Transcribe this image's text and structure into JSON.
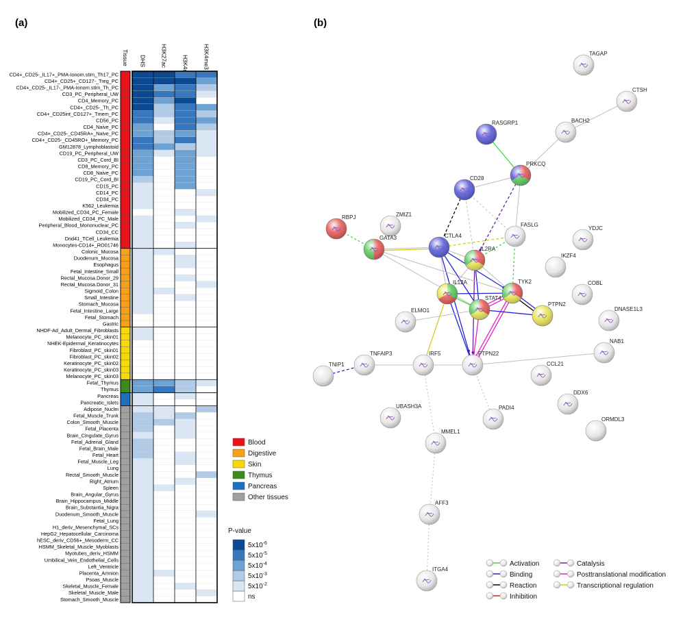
{
  "panel_a": {
    "label": "(a)",
    "tissue_header": "Tissue",
    "columns": [
      "DHS",
      "H3K27ac",
      "H3K4me1",
      "H3K4me3"
    ],
    "groups": [
      {
        "name": "Blood",
        "color": "#e8141c",
        "rows": [
          {
            "label": "CD4+_CD25-_IL17+_PMA-Ionom.stim_Th17_PC",
            "values": [
              5,
              5,
              4,
              4
            ]
          },
          {
            "label": "CD4+_CD25+_CD127-_Treg_PC",
            "values": [
              5,
              5,
              5,
              3
            ]
          },
          {
            "label": "CD4+_CD25-_IL17-_PMA-Ionom.stim_Th_PC",
            "values": [
              5,
              3,
              4,
              2
            ]
          },
          {
            "label": "CD3_PC_Peripheral_UW",
            "values": [
              5,
              4,
              4,
              1
            ]
          },
          {
            "label": "CD4_Memory_PC",
            "values": [
              5,
              3,
              5,
              0
            ]
          },
          {
            "label": "CD4+_CD25-_Th_PC",
            "values": [
              5,
              2,
              4,
              3
            ]
          },
          {
            "label": "CD4+_CD25int_CD127+_Tmem_PC",
            "values": [
              4,
              2,
              4,
              2
            ]
          },
          {
            "label": "CD56_PC",
            "values": [
              4,
              1,
              4,
              3
            ]
          },
          {
            "label": "CD4_Naive_PC",
            "values": [
              3,
              0,
              4,
              2
            ]
          },
          {
            "label": "CD4+_CD25-_CD45RA+_Naive_PC",
            "values": [
              3,
              2,
              3,
              1
            ]
          },
          {
            "label": "CD4+_CD25-_CD45RO+_Memory_PC",
            "values": [
              4,
              2,
              4,
              1
            ]
          },
          {
            "label": "GM12878_Lymphoblastoid",
            "values": [
              4,
              3,
              2,
              1
            ]
          },
          {
            "label": "CD19_PC_Peripheral_UW",
            "values": [
              3,
              1,
              3,
              1
            ]
          },
          {
            "label": "CD3_PC_Cord_BI",
            "values": [
              3,
              0,
              3,
              0
            ]
          },
          {
            "label": "CD8_Memory_PC",
            "values": [
              3,
              0,
              3,
              0
            ]
          },
          {
            "label": "CD8_Naive_PC",
            "values": [
              3,
              0,
              3,
              0
            ]
          },
          {
            "label": "CD19_PC_Cord_BI",
            "values": [
              2,
              0,
              3,
              0
            ]
          },
          {
            "label": "CD15_PC",
            "values": [
              1,
              0,
              3,
              0
            ]
          },
          {
            "label": "CD14_PC",
            "values": [
              1,
              0,
              0,
              1
            ]
          },
          {
            "label": "CD34_PC",
            "values": [
              1,
              0,
              0,
              0
            ]
          },
          {
            "label": "K562_Leukemia",
            "values": [
              1,
              0,
              0,
              0
            ]
          },
          {
            "label": "Mobilized_CD34_PC_Female",
            "values": [
              0,
              0,
              1,
              0
            ]
          },
          {
            "label": "Mobilized_CD34_PC_Male",
            "values": [
              1,
              0,
              0,
              1
            ]
          },
          {
            "label": "Peripheral_Blood_Mononuclear_PC",
            "values": [
              1,
              0,
              1,
              0
            ]
          },
          {
            "label": "CD34_CC",
            "values": [
              1,
              0,
              0,
              0
            ]
          },
          {
            "label": "Dnd41_TCell_Leukemia",
            "values": [
              1,
              0,
              0,
              0
            ]
          },
          {
            "label": "Monocytes-CD14+_RO01746",
            "values": [
              1,
              0,
              1,
              0
            ]
          }
        ]
      },
      {
        "name": "Digestive",
        "color": "#f7a11a",
        "rows": [
          {
            "label": "Colonic_Mucosa",
            "values": [
              1,
              1,
              0,
              0
            ]
          },
          {
            "label": "Duodenum_Mucosa",
            "values": [
              1,
              0,
              1,
              0
            ]
          },
          {
            "label": "Esophagus",
            "values": [
              1,
              0,
              1,
              0
            ]
          },
          {
            "label": "Fetal_Intestine_Small",
            "values": [
              1,
              0,
              0,
              0
            ]
          },
          {
            "label": "Rectal_Mucosa.Donor_29",
            "values": [
              1,
              0,
              1,
              0
            ]
          },
          {
            "label": "Rectal_Mucosa.Donor_31",
            "values": [
              1,
              0,
              0,
              1
            ]
          },
          {
            "label": "Sigmoid_Colon",
            "values": [
              1,
              1,
              0,
              0
            ]
          },
          {
            "label": "Small_Intestine",
            "values": [
              1,
              0,
              1,
              0
            ]
          },
          {
            "label": "Stomach_Mucosa",
            "values": [
              1,
              0,
              0,
              0
            ]
          },
          {
            "label": "Fetal_Intestine_Large",
            "values": [
              1,
              0,
              0,
              0
            ]
          },
          {
            "label": "Fetal_Stomach",
            "values": [
              0,
              0,
              0,
              0
            ]
          },
          {
            "label": "Gastric",
            "values": [
              0,
              0,
              0,
              0
            ]
          }
        ]
      },
      {
        "name": "Skin",
        "color": "#f5d90a",
        "rows": [
          {
            "label": "NHDF-Ad_Adult_Dermal_Fibroblasts",
            "values": [
              1,
              0,
              0,
              0
            ]
          },
          {
            "label": "Melanocyte_PC_skin01",
            "values": [
              1,
              0,
              0,
              0
            ]
          },
          {
            "label": "NHEK-Epidermal_Keratinocytes",
            "values": [
              0,
              0,
              0,
              0
            ]
          },
          {
            "label": "Fibroblast_PC_skin01",
            "values": [
              0,
              0,
              0,
              0
            ]
          },
          {
            "label": "Fibroblast_PC_skin02",
            "values": [
              0,
              0,
              0,
              0
            ]
          },
          {
            "label": "Keratinocyte_PC_skin02",
            "values": [
              0,
              0,
              0,
              0
            ]
          },
          {
            "label": "Keratinocyte_PC_skin03",
            "values": [
              0,
              0,
              0,
              0
            ]
          },
          {
            "label": "Melanocyte_PC_skin03",
            "values": [
              0,
              0,
              0,
              0
            ]
          }
        ]
      },
      {
        "name": "Thymus",
        "color": "#3d8b1f",
        "rows": [
          {
            "label": "Fetal_Thymus",
            "values": [
              3,
              3,
              2,
              1
            ]
          },
          {
            "label": "Thymus",
            "values": [
              3,
              4,
              2,
              0
            ]
          }
        ]
      },
      {
        "name": "Pancreas",
        "color": "#1f6fc0",
        "rows": [
          {
            "label": "Pancreas",
            "values": [
              1,
              0,
              1,
              0
            ]
          },
          {
            "label": "Pancreatic_Islets",
            "values": [
              1,
              0,
              0,
              0
            ]
          }
        ]
      },
      {
        "name": "Other tissues",
        "color": "#a0a0a0",
        "rows": [
          {
            "label": "Adipose_Nuclei",
            "values": [
              1,
              1,
              0,
              2
            ]
          },
          {
            "label": "Fetal_Muscle_Trunk",
            "values": [
              2,
              1,
              2,
              0
            ]
          },
          {
            "label": "Colon_Smooth_Muscle",
            "values": [
              2,
              2,
              1,
              0
            ]
          },
          {
            "label": "Fetal_Placenta",
            "values": [
              2,
              0,
              1,
              0
            ]
          },
          {
            "label": "Brain_Cingulate_Gyrus",
            "values": [
              1,
              0,
              1,
              0
            ]
          },
          {
            "label": "Fetal_Adrenal_Gland",
            "values": [
              2,
              0,
              0,
              0
            ]
          },
          {
            "label": "Fetal_Brain_Male",
            "values": [
              2,
              0,
              0,
              0
            ]
          },
          {
            "label": "Fetal_Heart",
            "values": [
              2,
              0,
              1,
              0
            ]
          },
          {
            "label": "Fetal_Muscle_Leg",
            "values": [
              1,
              0,
              1,
              0
            ]
          },
          {
            "label": "Lung",
            "values": [
              1,
              0,
              0,
              0
            ]
          },
          {
            "label": "Rectal_Smooth_Muscle",
            "values": [
              1,
              0,
              0,
              2
            ]
          },
          {
            "label": "Right_Atrium",
            "values": [
              1,
              0,
              1,
              0
            ]
          },
          {
            "label": "Spleen",
            "values": [
              1,
              1,
              0,
              0
            ]
          },
          {
            "label": "Brain_Angular_Gyrus",
            "values": [
              1,
              0,
              0,
              0
            ]
          },
          {
            "label": "Brain_Hippocampus_Middle",
            "values": [
              1,
              0,
              0,
              0
            ]
          },
          {
            "label": "Brain_Substantia_Nigra",
            "values": [
              1,
              0,
              0,
              0
            ]
          },
          {
            "label": "Duodenum_Smooth_Muscle",
            "values": [
              1,
              0,
              0,
              1
            ]
          },
          {
            "label": "Fetal_Lung",
            "values": [
              1,
              0,
              0,
              0
            ]
          },
          {
            "label": "H1_deriv_Mesenchymal_SCs",
            "values": [
              1,
              0,
              0,
              0
            ]
          },
          {
            "label": "HepG2_Hepatocellular_Carcinoma",
            "values": [
              1,
              0,
              0,
              0
            ]
          },
          {
            "label": "hESC_deriv_CD56+_Mesoderm_CC",
            "values": [
              1,
              0,
              0,
              0
            ]
          },
          {
            "label": "HSMM_Skeletal_Muscle_Myoblasts",
            "values": [
              1,
              0,
              0,
              0
            ]
          },
          {
            "label": "Myotubes_deriv_HSMM",
            "values": [
              1,
              0,
              0,
              0
            ]
          },
          {
            "label": "Umbilical_Vein_Endothelial_Cells",
            "values": [
              1,
              0,
              0,
              0
            ]
          },
          {
            "label": "Left_Ventricle",
            "values": [
              1,
              0,
              0,
              0
            ]
          },
          {
            "label": "Placenta_Amnion",
            "values": [
              1,
              1,
              0,
              0
            ]
          },
          {
            "label": "Psoas_Muscle",
            "values": [
              1,
              0,
              0,
              0
            ]
          },
          {
            "label": "Skeletal_Muscle_Female",
            "values": [
              1,
              0,
              1,
              0
            ]
          },
          {
            "label": "Skeletal_Muscle_Male",
            "values": [
              1,
              0,
              0,
              1
            ]
          },
          {
            "label": "Stomach_Smooth_Muscle",
            "values": [
              1,
              0,
              0,
              0
            ]
          }
        ]
      }
    ],
    "pvalue_title": "P-value",
    "levels": [
      {
        "label": "ns",
        "color": "#ffffff"
      },
      {
        "label": "5x10",
        "sup": "-2",
        "color": "#dae6f4"
      },
      {
        "label": "5x10",
        "sup": "-3",
        "color": "#b1cbe7"
      },
      {
        "label": "5x10",
        "sup": "-4",
        "color": "#6ea2d3"
      },
      {
        "label": "5x10",
        "sup": "-5",
        "color": "#3877bc"
      },
      {
        "label": "5x10",
        "sup": "-6",
        "color": "#0c4991"
      }
    ]
  },
  "panel_b": {
    "label": "(b)",
    "nodes": [
      {
        "label": "TAGAP"
      },
      {
        "label": "CTSH"
      },
      {
        "label": "BACH2"
      },
      {
        "label": "RASGRP1",
        "colors": [
          "#3b3fcf"
        ]
      },
      {
        "label": "PRKCQ",
        "colors": [
          "#e03c3c",
          "#3fbf3f",
          "#3b3fcf"
        ]
      },
      {
        "label": "CD28",
        "colors": [
          "#3b3fcf"
        ]
      },
      {
        "label": "ZMIZ1"
      },
      {
        "label": "RBPJ",
        "colors": [
          "#e03c3c"
        ]
      },
      {
        "label": "FASLG"
      },
      {
        "label": "YDJC"
      },
      {
        "label": "GATA3",
        "colors": [
          "#e03c3c",
          "#3fbf3f"
        ]
      },
      {
        "label": "CTLA4",
        "colors": [
          "#3b3fcf"
        ]
      },
      {
        "label": "IKZF4"
      },
      {
        "label": "IL2RA",
        "colors": [
          "#e03c3c",
          "#e6e03a",
          "#3fbf3f"
        ]
      },
      {
        "label": "COBL"
      },
      {
        "label": "IL12A",
        "colors": [
          "#3fbf3f",
          "#e03c3c",
          "#e6e03a"
        ]
      },
      {
        "label": "TYK2",
        "colors": [
          "#e03c3c",
          "#e6e03a",
          "#3fbf3f"
        ]
      },
      {
        "label": "STAT4",
        "colors": [
          "#e03c3c",
          "#e6e03a",
          "#3fbf3f"
        ]
      },
      {
        "label": "PTPN2",
        "colors": [
          "#e6e03a"
        ]
      },
      {
        "label": "DNASE1L3"
      },
      {
        "label": "ELMO1"
      },
      {
        "label": "NAB1"
      },
      {
        "label": "IRF5"
      },
      {
        "label": "TNFAIP3"
      },
      {
        "label": "PTPN22"
      },
      {
        "label": "TNIP1"
      },
      {
        "label": "CCL21"
      },
      {
        "label": "DDX6"
      },
      {
        "label": "UBASH3A"
      },
      {
        "label": "PADI4"
      },
      {
        "label": "ORMDL3"
      },
      {
        "label": "MMEL1"
      },
      {
        "label": "AFF3"
      },
      {
        "label": "ITGA4"
      }
    ],
    "legend": [
      {
        "label": "Activation",
        "color": "#3fdc3f"
      },
      {
        "label": "Binding",
        "color": "#2222dd"
      },
      {
        "label": "Reaction",
        "color": "#000000"
      },
      {
        "label": "Inhibition",
        "color": "#e02020"
      },
      {
        "label": "Catalysis",
        "color": "#6a1fa0"
      },
      {
        "label": "Posttranslational modification",
        "color": "#e020c8"
      },
      {
        "label": "Transcriptional regulation",
        "color": "#d8cc10"
      }
    ]
  }
}
